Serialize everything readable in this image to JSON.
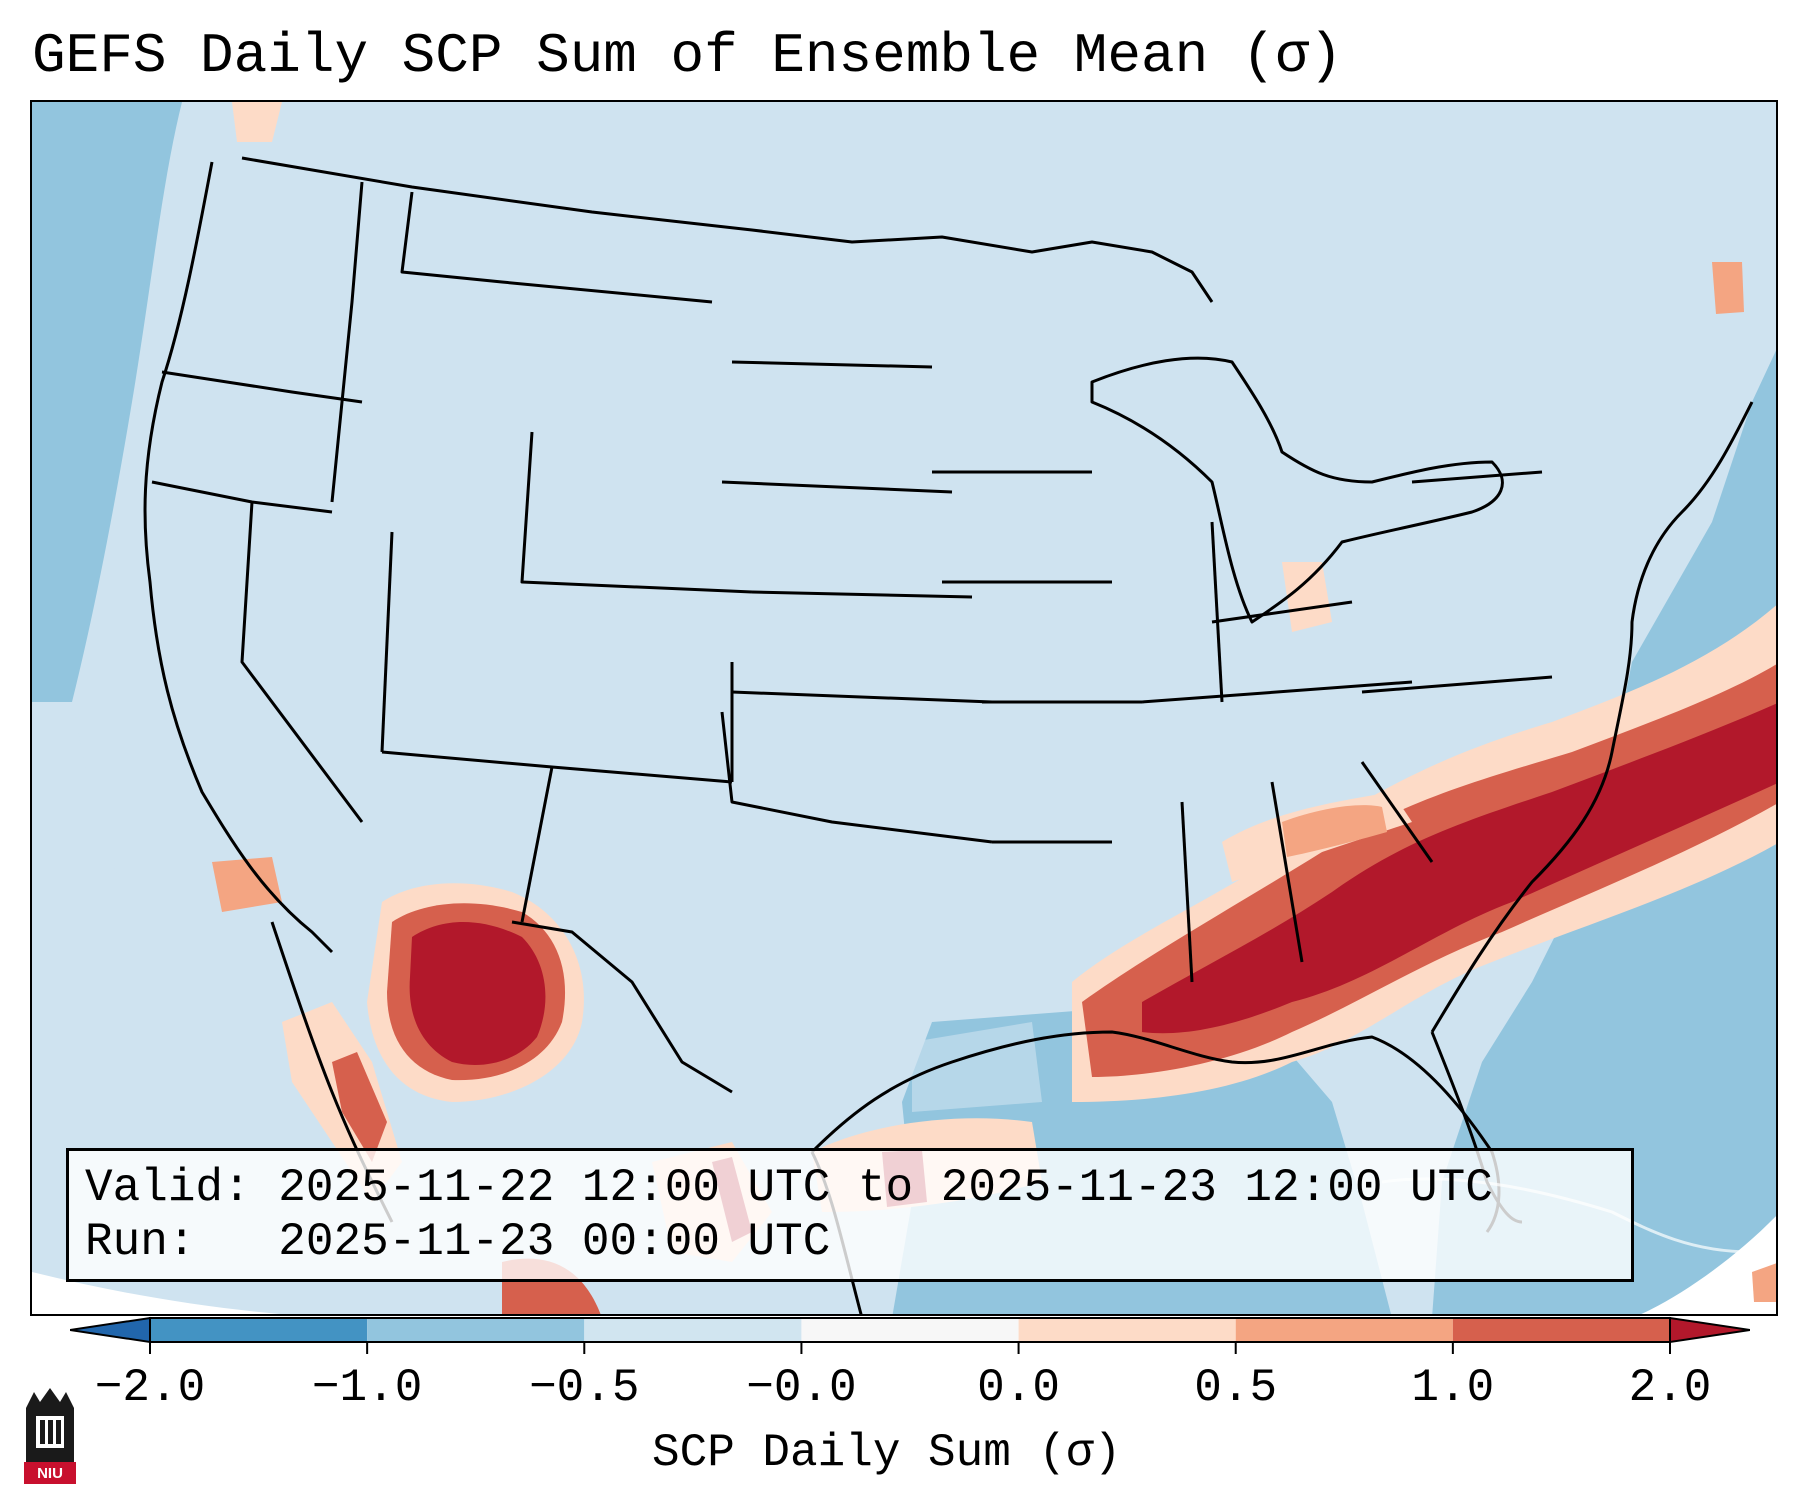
{
  "title": "GEFS Daily SCP Sum of Ensemble Mean (σ)",
  "info": {
    "valid_label": "Valid:",
    "valid_value": "2025-11-22 12:00 UTC to 2025-11-23 12:00 UTC",
    "run_label": "Run:",
    "run_value": "2025-11-23 00:00 UTC"
  },
  "colorbar": {
    "title": "SCP Daily Sum (σ)",
    "ticks": [
      "−2.0",
      "−1.0",
      "−0.5",
      "−0.0",
      "0.0",
      "0.5",
      "1.0",
      "2.0"
    ],
    "bins": [
      {
        "range": "-2.0 to -1.0",
        "color": "#4393c3"
      },
      {
        "range": "-1.0 to -0.5",
        "color": "#92c5de"
      },
      {
        "range": "-0.5 to -0.0",
        "color": "#d1e5f0"
      },
      {
        "range": "-0.0 to 0.0",
        "color": "#f7f7f7"
      },
      {
        "range": "0.0 to 0.5",
        "color": "#fddbc7"
      },
      {
        "range": "0.5 to 1.0",
        "color": "#f4a582"
      },
      {
        "range": "1.0 to 2.0",
        "color": "#d6604d"
      }
    ],
    "under_color": "#2166ac",
    "over_color": "#b2182b"
  },
  "logo": {
    "text": "NIU",
    "icon": "niu-logo-icon"
  }
}
